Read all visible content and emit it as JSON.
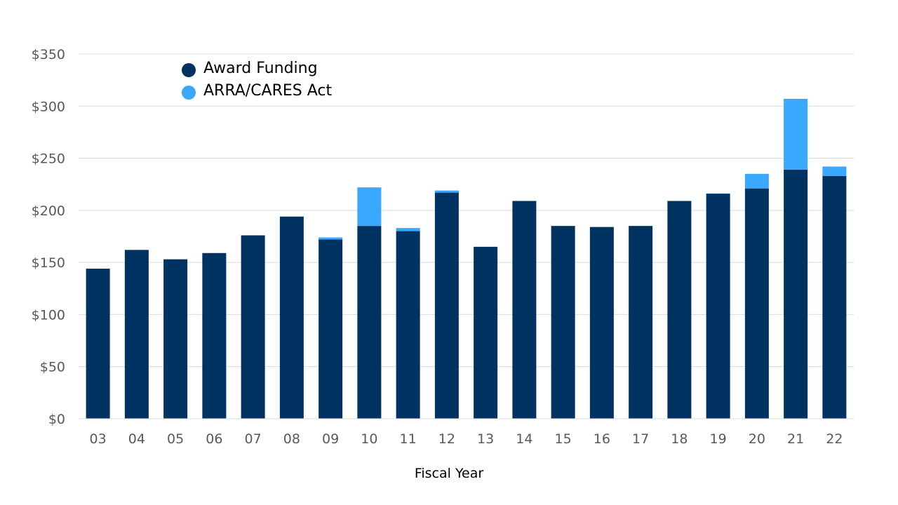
{
  "chart_data": {
    "type": "bar",
    "stacked": true,
    "title": "",
    "xlabel": "Fiscal Year",
    "ylabel": "",
    "categories": [
      "03",
      "04",
      "05",
      "06",
      "07",
      "08",
      "09",
      "10",
      "11",
      "12",
      "13",
      "14",
      "15",
      "16",
      "17",
      "18",
      "19",
      "20",
      "21",
      "22"
    ],
    "series": [
      {
        "name": "Award Funding",
        "color": "#003361",
        "values": [
          144,
          162,
          153,
          159,
          176,
          194,
          172,
          185,
          180,
          217,
          165,
          209,
          185,
          184,
          185,
          209,
          216,
          221,
          239,
          233
        ]
      },
      {
        "name": "ARRA/CARES Act",
        "color": "#3BA8FF",
        "values": [
          0,
          0,
          0,
          0,
          0,
          0,
          2,
          37,
          3,
          2,
          0,
          0,
          0,
          0,
          0,
          0,
          0,
          14,
          68,
          9
        ]
      }
    ],
    "ylim": [
      0,
      350
    ],
    "yticks": [
      0,
      50,
      100,
      150,
      200,
      250,
      300,
      350
    ],
    "ytick_labels": [
      "$0",
      "$50",
      "$100",
      "$150",
      "$200",
      "$250",
      "$300",
      "$350"
    ],
    "grid": true,
    "legend_position": "top-left"
  }
}
